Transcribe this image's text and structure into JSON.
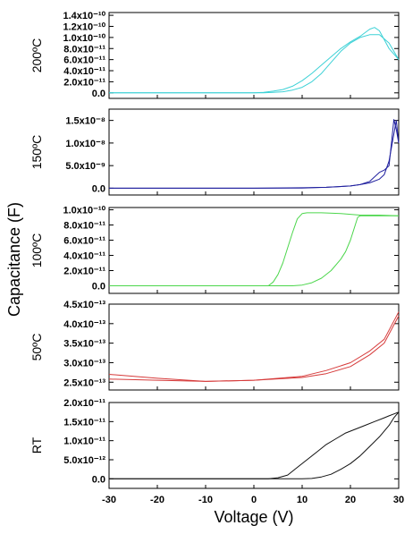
{
  "figure": {
    "ylabel": "Capacitance (F)",
    "xlabel": "Voltage (V)"
  },
  "chart_data": [
    {
      "type": "line",
      "panel_label": "200ºC",
      "color": "#3dd1d6",
      "xlim": [
        -30,
        30
      ],
      "ylim": [
        -1e-11,
        1.45e-10
      ],
      "yticks": [
        0,
        2e-11,
        4e-11,
        6e-11,
        8e-11,
        1e-10,
        1.2e-10,
        1.4e-10
      ],
      "ytick_labels": [
        "0.0",
        "2.0x10⁻¹¹",
        "4.0x10⁻¹¹",
        "6.0x10⁻¹¹",
        "8.0x10⁻¹¹",
        "1.0x10⁻¹⁰",
        "1.2x10⁻¹⁰",
        "1.4x10⁻¹⁰"
      ],
      "series": [
        {
          "x": [
            -30,
            0,
            2,
            4,
            6,
            8,
            10,
            12,
            14,
            16,
            18,
            20,
            22,
            24,
            25,
            26,
            28,
            30
          ],
          "y": [
            0,
            0,
            1e-12,
            3e-12,
            6e-12,
            1.2e-11,
            2.2e-11,
            3.5e-11,
            5e-11,
            6.5e-11,
            8e-11,
            9.2e-11,
            1.02e-10,
            1.15e-10,
            1.18e-10,
            1.12e-10,
            8e-11,
            6e-11
          ]
        },
        {
          "x": [
            30,
            28,
            26,
            24,
            22,
            20,
            18,
            16,
            14,
            12,
            10,
            8,
            6,
            4,
            2,
            0,
            -30
          ],
          "y": [
            6e-11,
            9e-11,
            1.05e-10,
            1.05e-10,
            1e-10,
            9e-11,
            7.5e-11,
            5.5e-11,
            3.5e-11,
            2e-11,
            1e-11,
            5e-12,
            2e-12,
            1e-12,
            0,
            0,
            0
          ]
        }
      ]
    },
    {
      "type": "line",
      "panel_label": "150ºC",
      "color": "#1f1f9e",
      "xlim": [
        -30,
        30
      ],
      "ylim": [
        -1.5e-09,
        1.75e-08
      ],
      "yticks": [
        0,
        5e-09,
        1e-08,
        1.5e-08
      ],
      "ytick_labels": [
        "0.0",
        "5.0x10⁻⁹",
        "1.0x10⁻⁸",
        "1.5x10⁻⁸"
      ],
      "series": [
        {
          "x": [
            -30,
            0,
            10,
            15,
            20,
            22,
            24,
            25,
            26,
            27,
            28,
            28.5,
            29,
            29.5,
            30
          ],
          "y": [
            0,
            0,
            1e-10,
            2e-10,
            5e-10,
            8e-10,
            1.5e-09,
            2.5e-09,
            3.5e-09,
            4e-09,
            5e-09,
            1e-08,
            1.52e-08,
            1.3e-08,
            1e-08
          ]
        },
        {
          "x": [
            30,
            29.5,
            29,
            28,
            27,
            26,
            24,
            22,
            20,
            15,
            10,
            0,
            -30
          ],
          "y": [
            1e-08,
            1.5e-08,
            1.2e-08,
            6e-09,
            3e-09,
            2e-09,
            1.2e-09,
            8e-10,
            5e-10,
            2e-10,
            5e-11,
            0,
            0
          ]
        }
      ]
    },
    {
      "type": "line",
      "panel_label": "100ºC",
      "color": "#4cd64c",
      "xlim": [
        -30,
        30
      ],
      "ylim": [
        -1e-11,
        1.03e-10
      ],
      "yticks": [
        0,
        2e-11,
        4e-11,
        6e-11,
        8e-11,
        1e-10
      ],
      "ytick_labels": [
        "0.0",
        "2.0x10⁻¹¹",
        "4.0x10⁻¹¹",
        "6.0x10⁻¹¹",
        "8.0x10⁻¹¹",
        "1.0x10⁻¹⁰"
      ],
      "series": [
        {
          "x": [
            -30,
            3,
            4,
            5,
            6,
            7,
            8,
            9,
            10,
            11,
            14,
            18,
            22,
            26,
            30
          ],
          "y": [
            0,
            0,
            5e-12,
            1.5e-11,
            3e-11,
            5e-11,
            7e-11,
            8.8e-11,
            9.5e-11,
            9.6e-11,
            9.6e-11,
            9.5e-11,
            9.3e-11,
            9.3e-11,
            9.2e-11
          ]
        },
        {
          "x": [
            30,
            26,
            22,
            21.5,
            21,
            20,
            19,
            18,
            16,
            14,
            12,
            10,
            8,
            6,
            -30
          ],
          "y": [
            9.2e-11,
            9.2e-11,
            9.2e-11,
            9e-11,
            8e-11,
            6e-11,
            4.5e-11,
            3.5e-11,
            2e-11,
            1e-11,
            4e-12,
            1e-12,
            0,
            0,
            0
          ]
        }
      ]
    },
    {
      "type": "line",
      "panel_label": "50ºC",
      "color": "#d63a3a",
      "xlim": [
        -30,
        30
      ],
      "ylim": [
        2.3e-13,
        4.5e-13
      ],
      "yticks": [
        2.5e-13,
        3e-13,
        3.5e-13,
        4e-13,
        4.5e-13
      ],
      "ytick_labels": [
        "2.5x10⁻¹³",
        "3.0x10⁻¹³",
        "3.5x10⁻¹³",
        "4.0x10⁻¹³",
        "4.5x10⁻¹³"
      ],
      "series": [
        {
          "x": [
            -30,
            -20,
            -10,
            0,
            10,
            15,
            20,
            24,
            27,
            30
          ],
          "y": [
            2.7e-13,
            2.6e-13,
            2.52e-13,
            2.55e-13,
            2.65e-13,
            2.8e-13,
            3e-13,
            3.3e-13,
            3.6e-13,
            4.3e-13
          ]
        },
        {
          "x": [
            30,
            27,
            24,
            20,
            15,
            10,
            0,
            -10,
            -20,
            -30
          ],
          "y": [
            4.2e-13,
            3.5e-13,
            3.2e-13,
            2.9e-13,
            2.72e-13,
            2.62e-13,
            2.55e-13,
            2.52e-13,
            2.55e-13,
            2.58e-13
          ]
        }
      ]
    },
    {
      "type": "line",
      "panel_label": "RT",
      "color": "#111111",
      "xlim": [
        -30,
        30
      ],
      "ylim": [
        -2.5e-12,
        2e-11
      ],
      "yticks": [
        0,
        5e-12,
        1e-11,
        1.5e-11,
        2e-11
      ],
      "ytick_labels": [
        "0.0",
        "5.0x10⁻¹²",
        "1.0x10⁻¹¹",
        "1.5x10⁻¹¹",
        "2.0x10⁻¹¹"
      ],
      "xticks": [
        -30,
        -20,
        -10,
        0,
        10,
        20,
        30
      ],
      "xtick_labels": [
        "-30",
        "-20",
        "-10",
        "0",
        "10",
        "20",
        "30"
      ],
      "series": [
        {
          "x": [
            -30,
            3,
            5,
            7,
            9,
            11,
            13,
            15,
            17,
            19,
            21,
            23,
            25,
            27,
            28,
            29,
            30
          ],
          "y": [
            0,
            0,
            3e-13,
            1e-12,
            3e-12,
            5e-12,
            7e-12,
            9e-12,
            1.05e-11,
            1.2e-11,
            1.3e-11,
            1.4e-11,
            1.5e-11,
            1.6e-11,
            1.65e-11,
            1.7e-11,
            1.75e-11
          ]
        },
        {
          "x": [
            30,
            29,
            28,
            26,
            24,
            22,
            20,
            18,
            16,
            14,
            12,
            10,
            8,
            6,
            -30
          ],
          "y": [
            1.75e-11,
            1.6e-11,
            1.4e-11,
            1.1e-11,
            8.5e-12,
            6e-12,
            4e-12,
            2.5e-12,
            1.2e-12,
            5e-13,
            1e-13,
            0,
            0,
            0,
            0
          ]
        }
      ]
    }
  ]
}
